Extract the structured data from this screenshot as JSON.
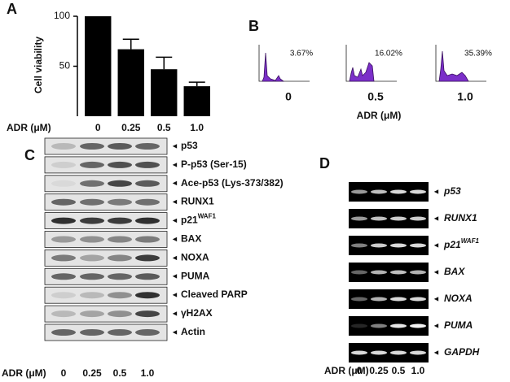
{
  "chart_data": {
    "type": "bar",
    "panel": "A",
    "ylabel": "Cell viability",
    "xlabel": "ADR (μM)",
    "categories": [
      "0",
      "0.25",
      "0.5",
      "1.0"
    ],
    "values": [
      100,
      67,
      47,
      30
    ],
    "errors": [
      0,
      10,
      12,
      4
    ],
    "color": "#000000",
    "ylim": [
      0,
      100
    ],
    "yticks": [
      50,
      100
    ]
  },
  "panel_b": {
    "label": "B",
    "xlabel": "ADR  (μM)",
    "histograms": [
      {
        "dose": "0",
        "percent": "3.67%"
      },
      {
        "dose": "0.5",
        "percent": "16.02%"
      },
      {
        "dose": "1.0",
        "percent": "35.39%"
      }
    ]
  },
  "panel_c": {
    "label": "C",
    "xlabel": "ADR (μM)",
    "lanes": [
      "0",
      "0.25",
      "0.5",
      "1.0"
    ],
    "bands": [
      {
        "text": "p53"
      },
      {
        "text": "P-p53 (Ser-15)"
      },
      {
        "text": "Ace-p53 (Lys-373/382)"
      },
      {
        "text": "RUNX1"
      },
      {
        "text": "p21",
        "sup": "WAF1"
      },
      {
        "text": "BAX"
      },
      {
        "text": "NOXA"
      },
      {
        "text": "PUMA"
      },
      {
        "text": "Cleaved PARP"
      },
      {
        "text": "γH2AX"
      },
      {
        "text": "Actin"
      }
    ]
  },
  "panel_d": {
    "label": "D",
    "xlabel": "ADR (μM)",
    "lanes": [
      "0",
      "0.25",
      "0.5",
      "1.0"
    ],
    "genes": [
      {
        "text": "p53"
      },
      {
        "text": "RUNX1"
      },
      {
        "text": "p21",
        "sup": "WAF1"
      },
      {
        "text": "BAX"
      },
      {
        "text": "NOXA"
      },
      {
        "text": "PUMA"
      },
      {
        "text": "GAPDH"
      }
    ]
  }
}
